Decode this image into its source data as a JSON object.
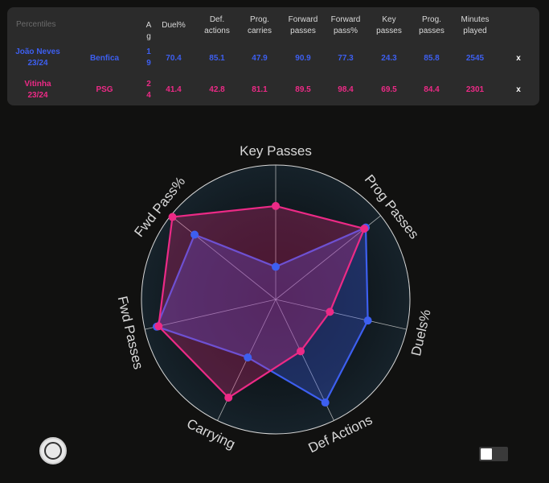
{
  "table": {
    "title": "Percentiles",
    "headers": [
      {
        "l1": "Ag",
        "l2": ""
      },
      {
        "l1": "Duel%",
        "l2": ""
      },
      {
        "l1": "Def.",
        "l2": "actions"
      },
      {
        "l1": "Prog.",
        "l2": "carries"
      },
      {
        "l1": "Forward",
        "l2": "passes"
      },
      {
        "l1": "Forward",
        "l2": "pass%"
      },
      {
        "l1": "Key",
        "l2": "passes"
      },
      {
        "l1": "Prog.",
        "l2": "passes"
      },
      {
        "l1": "Minutes",
        "l2": "played"
      }
    ],
    "rows": [
      {
        "name": "João Neves",
        "season": "23/24",
        "team": "Benfica",
        "age": "19",
        "duel": "70.4",
        "def": "85.1",
        "carries": "47.9",
        "fwd": "90.9",
        "fwdpct": "77.3",
        "key": "24.3",
        "prog": "85.8",
        "minutes": "2545",
        "remove": "x"
      },
      {
        "name": "Vitinha",
        "season": "23/24",
        "team": "PSG",
        "age": "24",
        "duel": "41.4",
        "def": "42.8",
        "carries": "81.1",
        "fwd": "89.5",
        "fwdpct": "98.4",
        "key": "69.5",
        "prog": "84.4",
        "minutes": "2301",
        "remove": "x"
      }
    ]
  },
  "chart_data": {
    "type": "radar",
    "axes": [
      "Key Passes",
      "Prog Passes",
      "Duels%",
      "Def Actions",
      "Carrying",
      "Fwd Passes",
      "Fwd Pass%"
    ],
    "range": [
      0,
      100
    ],
    "series": [
      {
        "name": "João Neves",
        "color": "#3d5ff0",
        "values": [
          24.3,
          85.8,
          70.4,
          85.1,
          47.9,
          90.9,
          77.3
        ]
      },
      {
        "name": "Vitinha",
        "color": "#ec2a86",
        "values": [
          69.5,
          84.4,
          41.4,
          42.8,
          81.1,
          89.5,
          98.4
        ]
      }
    ]
  }
}
